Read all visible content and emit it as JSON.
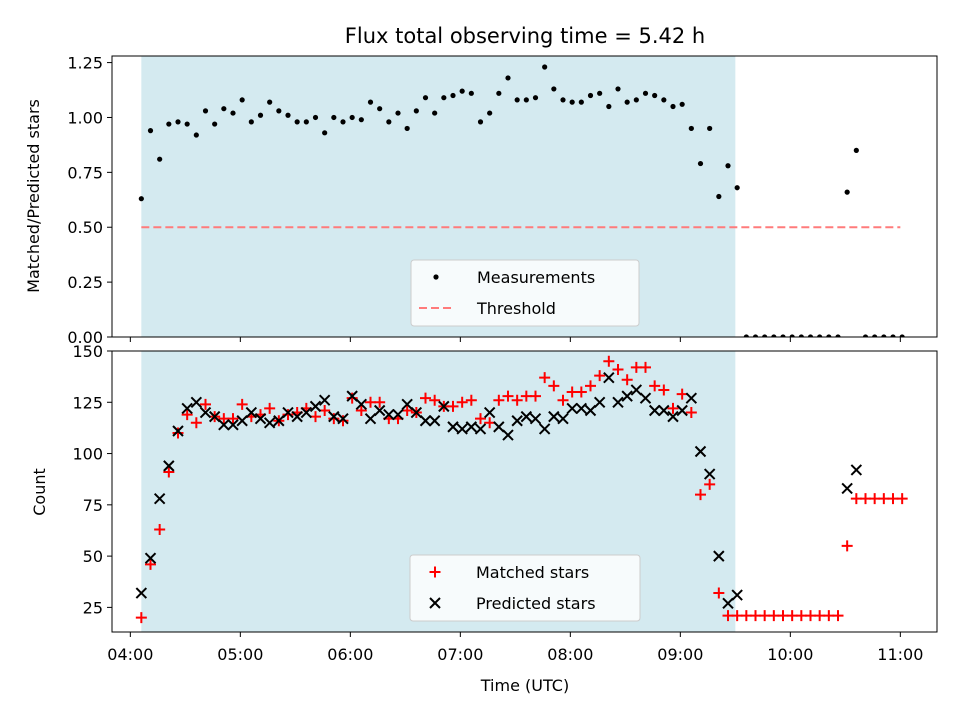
{
  "title": "Flux total observing time = 5.42 h",
  "chart_data": [
    {
      "type": "scatter",
      "ylabel": "Matched/Predicted stars",
      "xlim": [
        "03:50",
        "11:20"
      ],
      "ylim": [
        0,
        1.28
      ],
      "yticks": [
        "0.00",
        "0.25",
        "0.50",
        "0.75",
        "1.00",
        "1.25"
      ],
      "shaded_interval": [
        "04:06",
        "09:30"
      ],
      "shade_color": "#d4eaf0",
      "threshold": {
        "label": "Threshold",
        "value": 0.5,
        "x_range": [
          "04:06",
          "11:00"
        ],
        "color": "#ff7b7b"
      },
      "legend": {
        "placement": "bottom-center",
        "entries": [
          "Measurements",
          "Threshold"
        ]
      },
      "series": [
        {
          "name": "Measurements",
          "color": "#000000",
          "marker": "dot",
          "x": [
            "04:06",
            "04:11",
            "04:16",
            "04:21",
            "04:26",
            "04:31",
            "04:36",
            "04:41",
            "04:46",
            "04:51",
            "04:56",
            "05:01",
            "05:06",
            "05:11",
            "05:16",
            "05:21",
            "05:26",
            "05:31",
            "05:36",
            "05:41",
            "05:46",
            "05:51",
            "05:56",
            "06:01",
            "06:06",
            "06:11",
            "06:16",
            "06:21",
            "06:26",
            "06:31",
            "06:36",
            "06:41",
            "06:46",
            "06:51",
            "06:56",
            "07:01",
            "07:06",
            "07:11",
            "07:16",
            "07:21",
            "07:26",
            "07:31",
            "07:36",
            "07:41",
            "07:46",
            "07:51",
            "07:56",
            "08:01",
            "08:06",
            "08:11",
            "08:16",
            "08:21",
            "08:26",
            "08:31",
            "08:36",
            "08:41",
            "08:46",
            "08:51",
            "08:56",
            "09:01",
            "09:06",
            "09:11",
            "09:16",
            "09:21",
            "09:26",
            "09:31",
            "09:36",
            "09:41",
            "09:46",
            "09:51",
            "09:56",
            "10:01",
            "10:06",
            "10:11",
            "10:16",
            "10:21",
            "10:26",
            "10:31",
            "10:36",
            "10:41",
            "10:46",
            "10:51",
            "10:56",
            "11:01"
          ],
          "y": [
            0.63,
            0.94,
            0.81,
            0.97,
            0.98,
            0.97,
            0.92,
            1.03,
            0.97,
            1.04,
            1.02,
            1.08,
            0.98,
            1.01,
            1.07,
            1.03,
            1.01,
            0.98,
            0.98,
            1.0,
            0.93,
            1.0,
            0.98,
            1.0,
            0.99,
            1.07,
            1.04,
            0.98,
            1.02,
            0.95,
            1.03,
            1.09,
            1.02,
            1.09,
            1.1,
            1.12,
            1.11,
            0.98,
            1.02,
            1.11,
            1.18,
            1.08,
            1.08,
            1.09,
            1.23,
            1.13,
            1.08,
            1.07,
            1.07,
            1.1,
            1.11,
            1.05,
            1.13,
            1.07,
            1.08,
            1.11,
            1.1,
            1.08,
            1.05,
            1.06,
            0.95,
            0.79,
            0.95,
            0.64,
            0.78,
            0.68,
            0.0,
            0.0,
            0.0,
            0.0,
            0.0,
            0.0,
            0.0,
            0.0,
            0.0,
            0.0,
            0.0,
            0.66,
            0.85,
            0.0,
            0.0,
            0.0,
            0.0,
            0.0
          ]
        }
      ]
    },
    {
      "type": "scatter",
      "xlabel": "Time (UTC)",
      "ylabel": "Count",
      "xlim": [
        "03:50",
        "11:20"
      ],
      "ylim": [
        13,
        150
      ],
      "yticks": [
        "25",
        "50",
        "75",
        "100",
        "125",
        "150"
      ],
      "xticks": [
        "04:00",
        "05:00",
        "06:00",
        "07:00",
        "08:00",
        "09:00",
        "10:00",
        "11:00"
      ],
      "shaded_interval": [
        "04:06",
        "09:30"
      ],
      "legend": {
        "placement": "bottom-center",
        "entries": [
          "Matched stars",
          "Predicted stars"
        ]
      },
      "series": [
        {
          "name": "Matched stars",
          "color": "#ff0000",
          "marker": "plus",
          "x": [
            "04:06",
            "04:11",
            "04:16",
            "04:21",
            "04:26",
            "04:31",
            "04:36",
            "04:41",
            "04:46",
            "04:51",
            "04:56",
            "05:01",
            "05:06",
            "05:11",
            "05:16",
            "05:21",
            "05:26",
            "05:31",
            "05:36",
            "05:41",
            "05:46",
            "05:51",
            "05:56",
            "06:01",
            "06:06",
            "06:11",
            "06:16",
            "06:21",
            "06:26",
            "06:31",
            "06:36",
            "06:41",
            "06:46",
            "06:51",
            "06:56",
            "07:01",
            "07:06",
            "07:11",
            "07:16",
            "07:21",
            "07:26",
            "07:31",
            "07:36",
            "07:41",
            "07:46",
            "07:51",
            "07:56",
            "08:01",
            "08:06",
            "08:11",
            "08:16",
            "08:21",
            "08:26",
            "08:31",
            "08:36",
            "08:41",
            "08:46",
            "08:51",
            "08:56",
            "09:01",
            "09:06",
            "09:11",
            "09:16",
            "09:21",
            "09:26",
            "09:31",
            "09:36",
            "09:41",
            "09:46",
            "09:51",
            "09:56",
            "10:01",
            "10:06",
            "10:11",
            "10:16",
            "10:21",
            "10:26",
            "10:31",
            "10:36",
            "10:41",
            "10:46",
            "10:51",
            "10:56",
            "11:01"
          ],
          "y": [
            20,
            46,
            63,
            91,
            110,
            119,
            115,
            124,
            118,
            117,
            117,
            124,
            118,
            119,
            122,
            116,
            119,
            120,
            122,
            118,
            121,
            117,
            116,
            127,
            121,
            125,
            125,
            117,
            117,
            121,
            120,
            127,
            126,
            123,
            123,
            125,
            126,
            117,
            115,
            126,
            128,
            126,
            128,
            128,
            137,
            133,
            126,
            130,
            130,
            133,
            138,
            145,
            141,
            136,
            142,
            142,
            133,
            131,
            122,
            129,
            120,
            80,
            85,
            32,
            21,
            21,
            21,
            21,
            21,
            21,
            21,
            21,
            21,
            21,
            21,
            21,
            21,
            55,
            78,
            78,
            78,
            78,
            78,
            78
          ]
        },
        {
          "name": "Predicted stars",
          "color": "#000000",
          "marker": "x",
          "x": [
            "04:06",
            "04:11",
            "04:16",
            "04:21",
            "04:26",
            "04:31",
            "04:36",
            "04:41",
            "04:46",
            "04:51",
            "04:56",
            "05:01",
            "05:06",
            "05:11",
            "05:16",
            "05:21",
            "05:26",
            "05:31",
            "05:36",
            "05:41",
            "05:46",
            "05:51",
            "05:56",
            "06:01",
            "06:06",
            "06:11",
            "06:16",
            "06:21",
            "06:26",
            "06:31",
            "06:36",
            "06:41",
            "06:46",
            "06:51",
            "06:56",
            "07:01",
            "07:06",
            "07:11",
            "07:16",
            "07:21",
            "07:26",
            "07:31",
            "07:36",
            "07:41",
            "07:46",
            "07:51",
            "07:56",
            "08:01",
            "08:06",
            "08:11",
            "08:16",
            "08:21",
            "08:26",
            "08:31",
            "08:36",
            "08:41",
            "08:46",
            "08:51",
            "08:56",
            "09:01",
            "09:06",
            "09:11",
            "09:16",
            "09:21",
            "09:26",
            "09:31",
            "10:31",
            "10:36"
          ],
          "y": [
            32,
            49,
            78,
            94,
            111,
            122,
            125,
            120,
            118,
            114,
            114,
            116,
            120,
            117,
            115,
            116,
            120,
            118,
            120,
            123,
            126,
            118,
            117,
            128,
            124,
            117,
            121,
            119,
            119,
            124,
            120,
            116,
            116,
            123,
            113,
            112,
            113,
            112,
            120,
            113,
            109,
            116,
            118,
            117,
            112,
            118,
            117,
            122,
            122,
            121,
            125,
            137,
            125,
            128,
            131,
            127,
            121,
            121,
            118,
            121,
            127,
            101,
            90,
            50,
            27,
            31,
            83,
            92
          ]
        }
      ]
    }
  ]
}
